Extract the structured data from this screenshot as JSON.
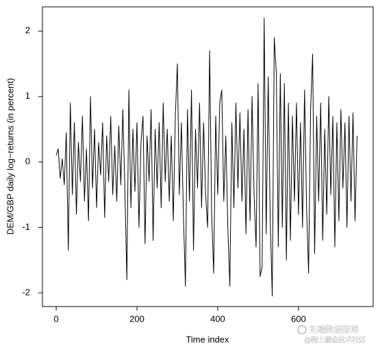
{
  "chart_data": {
    "type": "line",
    "x_label": "Time index",
    "y_label": "DEM/GBP daily log−returns (in percent)",
    "x": [
      0,
      5,
      10,
      15,
      20,
      25,
      30,
      35,
      40,
      45,
      50,
      55,
      60,
      65,
      70,
      75,
      80,
      85,
      90,
      95,
      100,
      105,
      110,
      115,
      120,
      125,
      130,
      135,
      140,
      145,
      150,
      155,
      160,
      165,
      170,
      175,
      180,
      185,
      190,
      195,
      200,
      205,
      210,
      215,
      220,
      225,
      230,
      235,
      240,
      245,
      250,
      255,
      260,
      265,
      270,
      275,
      280,
      285,
      290,
      295,
      300,
      305,
      310,
      315,
      320,
      325,
      330,
      335,
      340,
      345,
      350,
      355,
      360,
      365,
      370,
      375,
      380,
      385,
      390,
      395,
      400,
      405,
      410,
      415,
      420,
      425,
      430,
      435,
      440,
      445,
      450,
      455,
      460,
      465,
      470,
      475,
      480,
      485,
      490,
      495,
      500,
      505,
      510,
      515,
      520,
      525,
      530,
      535,
      540,
      545,
      550,
      555,
      560,
      565,
      570,
      575,
      580,
      585,
      590,
      595,
      600,
      605,
      610,
      615,
      620,
      625,
      630,
      635,
      640,
      645,
      650,
      655,
      660,
      665,
      670,
      675,
      680,
      685,
      690,
      695,
      700,
      705,
      710,
      715,
      720,
      725,
      730,
      735,
      740,
      745
    ],
    "series": [
      {
        "color": "#000000",
        "values": [
          0.1,
          0.2,
          -0.25,
          0.05,
          -0.35,
          0.45,
          -1.35,
          0.9,
          -0.5,
          0.6,
          -0.8,
          0.3,
          -0.3,
          0.7,
          -0.6,
          0.2,
          -0.9,
          1.0,
          -0.4,
          0.5,
          -0.7,
          0.3,
          -0.2,
          0.6,
          -0.85,
          0.4,
          -0.3,
          0.7,
          -0.5,
          0.25,
          -0.6,
          0.55,
          -0.35,
          0.8,
          -0.4,
          -1.8,
          1.1,
          -0.7,
          0.5,
          -0.45,
          0.6,
          -1.0,
          0.3,
          0.7,
          -1.25,
          0.4,
          -0.3,
          0.8,
          -1.2,
          0.5,
          -0.4,
          0.6,
          -0.7,
          0.9,
          -0.3,
          0.5,
          -0.6,
          0.4,
          -0.9,
          0.7,
          1.5,
          -0.5,
          0.6,
          -0.8,
          -1.9,
          0.8,
          -0.6,
          1.1,
          -1.35,
          0.5,
          -0.4,
          0.9,
          -0.7,
          0.6,
          -0.5,
          -1.0,
          1.7,
          -0.8,
          -1.7,
          0.7,
          -0.5,
          0.9,
          1.1,
          -0.6,
          0.4,
          -1.0,
          -1.9,
          0.6,
          -0.7,
          0.9,
          -0.4,
          0.75,
          -0.6,
          0.5,
          -1.1,
          0.8,
          -0.9,
          1.0,
          -0.5,
          -1.3,
          1.2,
          -1.75,
          -1.6,
          2.2,
          -1.1,
          1.3,
          -0.9,
          -2.05,
          1.9,
          1.37,
          -1.3,
          1.35,
          -1.0,
          1.2,
          -1.5,
          0.9,
          -1.2,
          0.7,
          -0.6,
          0.9,
          -0.8,
          0.6,
          -1.0,
          1.1,
          -0.7,
          -1.7,
          0.8,
          1.65,
          -1.4,
          0.7,
          -0.6,
          0.9,
          -1.2,
          0.5,
          -0.8,
          1.0,
          -0.5,
          0.7,
          -1.3,
          0.6,
          -0.9,
          0.8,
          -0.4,
          0.6,
          -1.0,
          0.7,
          -0.6,
          0.75,
          -0.9,
          0.4
        ]
      }
    ],
    "xlim": [
      -34,
      785
    ],
    "ylim": [
      -2.21,
      2.37
    ],
    "xticks": [
      0,
      200,
      400,
      600
    ],
    "yticks": [
      -2,
      -1,
      0,
      1,
      2
    ],
    "watermark": [
      "拓端数据部落",
      "@稀土掘金技术社区"
    ]
  }
}
